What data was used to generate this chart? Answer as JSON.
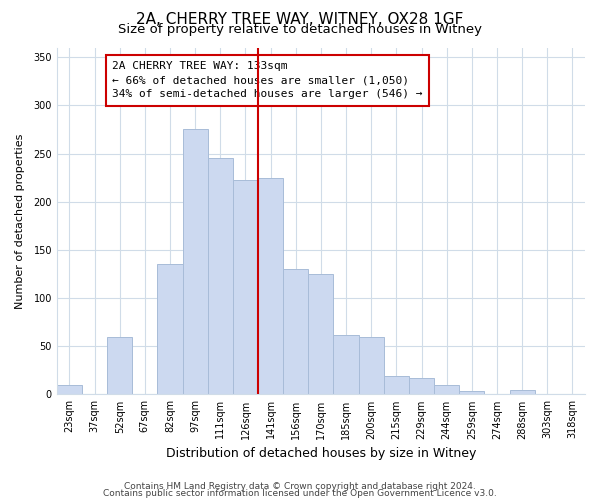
{
  "title": "2A, CHERRY TREE WAY, WITNEY, OX28 1GF",
  "subtitle": "Size of property relative to detached houses in Witney",
  "xlabel": "Distribution of detached houses by size in Witney",
  "ylabel": "Number of detached properties",
  "bar_color": "#ccd9f0",
  "bar_edge_color": "#a8bcd8",
  "categories": [
    "23sqm",
    "37sqm",
    "52sqm",
    "67sqm",
    "82sqm",
    "97sqm",
    "111sqm",
    "126sqm",
    "141sqm",
    "156sqm",
    "170sqm",
    "185sqm",
    "200sqm",
    "215sqm",
    "229sqm",
    "244sqm",
    "259sqm",
    "274sqm",
    "288sqm",
    "303sqm",
    "318sqm"
  ],
  "values": [
    10,
    0,
    60,
    0,
    135,
    275,
    245,
    222,
    225,
    130,
    125,
    62,
    60,
    19,
    17,
    10,
    4,
    0,
    5,
    0,
    0
  ],
  "vline_color": "#cc0000",
  "annotation_title": "2A CHERRY TREE WAY: 133sqm",
  "annotation_line1": "← 66% of detached houses are smaller (1,050)",
  "annotation_line2": "34% of semi-detached houses are larger (546) →",
  "footer1": "Contains HM Land Registry data © Crown copyright and database right 2024.",
  "footer2": "Contains public sector information licensed under the Open Government Licence v3.0.",
  "ylim": [
    0,
    360
  ],
  "yticks": [
    0,
    50,
    100,
    150,
    200,
    250,
    300,
    350
  ],
  "title_fontsize": 11,
  "subtitle_fontsize": 9.5,
  "xlabel_fontsize": 9,
  "ylabel_fontsize": 8,
  "tick_fontsize": 7,
  "ann_fontsize": 8,
  "footer_fontsize": 6.5,
  "background_color": "#ffffff",
  "grid_color": "#d0dce8"
}
